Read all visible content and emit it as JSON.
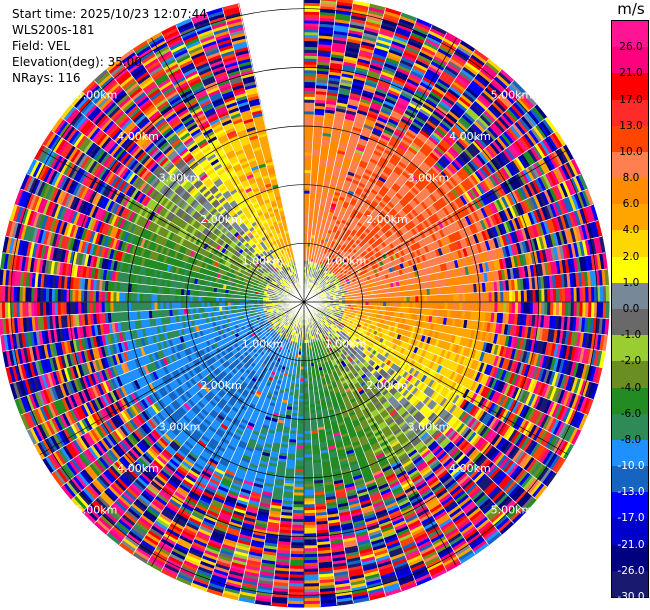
{
  "info": {
    "start_time": "Start time: 2025/10/23 12:07:44",
    "station": "WLS200s-181",
    "field": "Field: VEL",
    "elevation": "Elevation(deg): 35.00",
    "nrays": "NRays: 116"
  },
  "colorbar": {
    "unit": "m/s",
    "bins": [
      {
        "label": "26.0",
        "color": "#ff1493"
      },
      {
        "label": "21.0",
        "color": "#ff007f"
      },
      {
        "label": "17.0",
        "color": "#ff0000"
      },
      {
        "label": "13.0",
        "color": "#ff2a2a"
      },
      {
        "label": "10.0",
        "color": "#ff4500"
      },
      {
        "label": "8.0",
        "color": "#ff7f50"
      },
      {
        "label": "6.0",
        "color": "#ff8c00"
      },
      {
        "label": "4.0",
        "color": "#ffa500"
      },
      {
        "label": "2.0",
        "color": "#ffd700"
      },
      {
        "label": "1.0",
        "color": "#ffff00"
      },
      {
        "label": "0.0",
        "color": "#778899"
      },
      {
        "label": "-1.0",
        "color": "#696969"
      },
      {
        "label": "-2.0",
        "color": "#9acd32"
      },
      {
        "label": "-4.0",
        "color": "#6b8e23"
      },
      {
        "label": "-6.0",
        "color": "#228b22"
      },
      {
        "label": "-8.0",
        "color": "#2e8b57"
      },
      {
        "label": "-10.0",
        "color": "#1e90ff"
      },
      {
        "label": "-13.0",
        "color": "#1565c0"
      },
      {
        "label": "-17.0",
        "color": "#0000ff"
      },
      {
        "label": "-21.0",
        "color": "#0000cd"
      },
      {
        "label": "-26.0",
        "color": "#000080"
      },
      {
        "label": "-30.0",
        "color": "#191970"
      }
    ]
  },
  "chart_data": {
    "type": "heatmap",
    "projection": "polar PPI",
    "field": "VEL",
    "unit": "m/s",
    "rays": 116,
    "range_rings_km": [
      1.0,
      2.0,
      3.0,
      4.0,
      5.0
    ],
    "ring_labels_upper": [
      "1.00km",
      "2.00km",
      "3.00km",
      "4.00km",
      "5.00km"
    ],
    "ring_labels_lower": [
      "1.00km",
      "2.00km",
      "3.00km",
      "4.00km",
      "5.00km"
    ],
    "range_max_km": 5.2,
    "gap_azimuths_deg": [
      -13,
      0
    ],
    "velocity_pattern": {
      "north_east_near": "positive (receding) 4 to 13 m/s",
      "south_west_near": "negative (approaching) -2 to -10 m/s",
      "beyond_3km": "noisy, full color range"
    },
    "clim": [
      -30,
      30
    ],
    "grid": true
  }
}
